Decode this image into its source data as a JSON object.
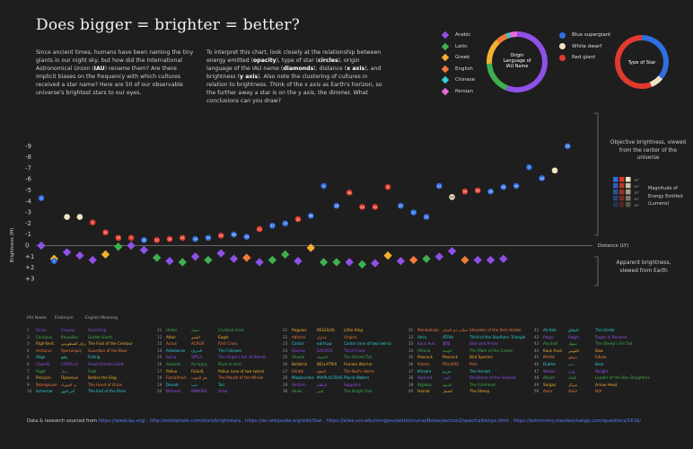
{
  "title": "Does bigger = brighter = better?",
  "intro_left": "Since ancient times, humans have been naming the tiny giants in our night sky, but how did the International Astronomical Union (IAU) rename them? Are there implicit biases on the frequency with which cultures received a star name? Here are 50 of our observable universe's brightest stars to our eyes.",
  "intro_right": "To interpret this chart, look closely at the relationship between energy emitted (opacity), type of star (circles), origin language of the IAU name (diamonds), distance (x axis), and brightness (y axis). Also note the clustering of cultures in relation to brightness. Think of the x axis as Earth's horizon, so the further away a star is on the y axis, the dimmer. What conclusions can you draw?",
  "legend_lang": {
    "items": [
      {
        "label": "Arabic",
        "color": "#8f50e8"
      },
      {
        "label": "Latin",
        "color": "#3fb04f"
      },
      {
        "label": "Greek",
        "color": "#f5b02e"
      },
      {
        "label": "English",
        "color": "#f07a38"
      },
      {
        "label": "Chinese",
        "color": "#2fd0d6"
      },
      {
        "label": "Persian",
        "color": "#e86ad8"
      }
    ],
    "donut_label": "Origin Language of IAU Name"
  },
  "legend_type": {
    "items": [
      {
        "label": "Blue supergiant",
        "color": "#2f6fe0"
      },
      {
        "label": "White dwarf",
        "color": "#efe3c3"
      },
      {
        "label": "Red giant",
        "color": "#e03a2e"
      }
    ],
    "donut_label": "Type of Star"
  },
  "axis": {
    "ylabel": "Brightness (M)",
    "xlabel": "Distance (LY)",
    "yticks": [
      "-9",
      "-8",
      "-7",
      "-6",
      "-5",
      "-4",
      "-3",
      "-2",
      "-1",
      "0",
      "+1",
      "+2",
      "+3"
    ]
  },
  "annotations": {
    "objective": "Objective brightness, viewed from the center of the universe",
    "apparent": "Apparent brightness, viewed from Earth",
    "energy": "Magnitude of Energy Emitted (Lumens)",
    "energy_ticks": [
      "10⁵",
      "10⁴",
      "10³",
      "10²",
      "10¹"
    ]
  },
  "chart_data": {
    "type": "scatter",
    "ylabel": "Brightness (M)",
    "xlabel": "Distance (LY)",
    "ylim": [
      -9,
      3
    ],
    "circles": [
      {
        "x": 1,
        "y": -4.3,
        "c": "#2f6fe0",
        "n": "4"
      },
      {
        "x": 2,
        "y": 1.4,
        "c": "#2f6fe0",
        "n": "1"
      },
      {
        "x": 3,
        "y": -2.6,
        "c": "#efe3c3",
        "n": ""
      },
      {
        "x": 4,
        "y": -2.6,
        "c": "#efe3c3",
        "n": ""
      },
      {
        "x": 5,
        "y": -2.1,
        "c": "#e03a2e",
        "n": "5"
      },
      {
        "x": 6,
        "y": -1.2,
        "c": "#e03a2e",
        "n": "14"
      },
      {
        "x": 7,
        "y": -0.7,
        "c": "#e03a2e",
        "n": "15"
      },
      {
        "x": 8,
        "y": -0.7,
        "c": "#e03a2e",
        "n": "7"
      },
      {
        "x": 9,
        "y": -0.5,
        "c": "#2f6fe0",
        "n": "18"
      },
      {
        "x": 10,
        "y": -0.5,
        "c": "#e03a2e",
        "n": "12"
      },
      {
        "x": 11,
        "y": -0.6,
        "c": "#e03a2e",
        "n": "20"
      },
      {
        "x": 12,
        "y": -0.7,
        "c": "#e03a2e",
        "n": "41"
      },
      {
        "x": 13,
        "y": -0.6,
        "c": "#2f6fe0",
        "n": "34"
      },
      {
        "x": 14,
        "y": -0.7,
        "c": "#2f6fe0",
        "n": "24"
      },
      {
        "x": 15,
        "y": -0.9,
        "c": "#e03a2e",
        "n": "19"
      },
      {
        "x": 16,
        "y": -1.0,
        "c": "#2f6fe0",
        "n": "46"
      },
      {
        "x": 17,
        "y": -0.8,
        "c": "#2f6fe0",
        "n": "29"
      },
      {
        "x": 18,
        "y": -1.5,
        "c": "#e03a2e",
        "n": "11"
      },
      {
        "x": 19,
        "y": -1.8,
        "c": "#2f6fe0",
        "n": "17"
      },
      {
        "x": 20,
        "y": -2.0,
        "c": "#2f6fe0",
        "n": "13"
      },
      {
        "x": 21,
        "y": -2.4,
        "c": "#e03a2e",
        "n": "31"
      },
      {
        "x": 22,
        "y": -2.7,
        "c": "#2f6fe0",
        "n": "36"
      },
      {
        "x": 23,
        "y": -5.4,
        "c": "#2f6fe0",
        "n": "6"
      },
      {
        "x": 24,
        "y": -3.6,
        "c": "#2f6fe0",
        "n": "28"
      },
      {
        "x": 25,
        "y": -4.8,
        "c": "#e03a2e",
        "n": "39"
      },
      {
        "x": 26,
        "y": -3.5,
        "c": "#e03a2e",
        "n": "43"
      },
      {
        "x": 27,
        "y": -3.5,
        "c": "#e03a2e",
        "n": "42"
      },
      {
        "x": 28,
        "y": -5.3,
        "c": "#e03a2e",
        "n": "8"
      },
      {
        "x": 29,
        "y": -3.6,
        "c": "#2f6fe0",
        "n": "37"
      },
      {
        "x": 30,
        "y": -3.0,
        "c": "#2f6fe0",
        "n": "27"
      },
      {
        "x": 31,
        "y": -2.6,
        "c": "#2f6fe0",
        "n": "21"
      },
      {
        "x": 32,
        "y": -5.4,
        "c": "#2f6fe0",
        "n": "31"
      },
      {
        "x": 33,
        "y": -4.4,
        "c": "#efe3c3",
        "n": "48"
      },
      {
        "x": 34,
        "y": -4.9,
        "c": "#e03a2e",
        "n": "50"
      },
      {
        "x": 35,
        "y": -5.0,
        "c": "#e03a2e",
        "n": "49"
      },
      {
        "x": 36,
        "y": -4.9,
        "c": "#2f6fe0",
        "n": "26"
      },
      {
        "x": 37,
        "y": -5.3,
        "c": "#2f6fe0",
        "n": "45"
      },
      {
        "x": 38,
        "y": -5.4,
        "c": "#2f6fe0",
        "n": "50"
      },
      {
        "x": 39,
        "y": -7.1,
        "c": "#2f6fe0",
        "n": "9"
      },
      {
        "x": 40,
        "y": -6.1,
        "c": "#2f6fe0",
        "n": "40"
      },
      {
        "x": 41,
        "y": -6.8,
        "c": "#efe3c3",
        "n": ""
      },
      {
        "x": 42,
        "y": -9.0,
        "c": "#2f6fe0",
        "n": "33"
      }
    ],
    "diamonds": [
      {
        "x": 1,
        "y": 0.0,
        "c": "#8f50e8"
      },
      {
        "x": 2,
        "y": 1.2,
        "c": "#f5b02e"
      },
      {
        "x": 3,
        "y": 0.6,
        "c": "#8f50e8"
      },
      {
        "x": 4,
        "y": 0.9,
        "c": "#8f50e8"
      },
      {
        "x": 5,
        "y": 1.3,
        "c": "#8f50e8"
      },
      {
        "x": 6,
        "y": 0.8,
        "c": "#f5b02e"
      },
      {
        "x": 7,
        "y": 0.1,
        "c": "#3fb04f"
      },
      {
        "x": 8,
        "y": 0.0,
        "c": "#8f50e8"
      },
      {
        "x": 9,
        "y": 0.4,
        "c": "#8f50e8"
      },
      {
        "x": 10,
        "y": 1.1,
        "c": "#3fb04f"
      },
      {
        "x": 11,
        "y": 1.4,
        "c": "#8f50e8"
      },
      {
        "x": 12,
        "y": 1.5,
        "c": "#3fb04f"
      },
      {
        "x": 13,
        "y": 1.0,
        "c": "#8f50e8"
      },
      {
        "x": 14,
        "y": 1.3,
        "c": "#3fb04f"
      },
      {
        "x": 15,
        "y": 0.7,
        "c": "#8f50e8"
      },
      {
        "x": 16,
        "y": 1.2,
        "c": "#8f50e8"
      },
      {
        "x": 17,
        "y": 1.1,
        "c": "#f07a38"
      },
      {
        "x": 18,
        "y": 1.5,
        "c": "#8f50e8"
      },
      {
        "x": 19,
        "y": 1.3,
        "c": "#3fb04f"
      },
      {
        "x": 20,
        "y": 0.8,
        "c": "#3fb04f"
      },
      {
        "x": 21,
        "y": 1.4,
        "c": "#8f50e8"
      },
      {
        "x": 22,
        "y": 0.2,
        "c": "#f5b02e"
      },
      {
        "x": 23,
        "y": 1.5,
        "c": "#3fb04f"
      },
      {
        "x": 24,
        "y": 1.5,
        "c": "#3fb04f"
      },
      {
        "x": 25,
        "y": 1.5,
        "c": "#8f50e8"
      },
      {
        "x": 26,
        "y": 1.7,
        "c": "#3fb04f"
      },
      {
        "x": 27,
        "y": 1.6,
        "c": "#8f50e8"
      },
      {
        "x": 28,
        "y": 0.9,
        "c": "#f5b02e"
      },
      {
        "x": 29,
        "y": 1.4,
        "c": "#8f50e8"
      },
      {
        "x": 30,
        "y": 1.3,
        "c": "#f07a38"
      },
      {
        "x": 31,
        "y": 1.2,
        "c": "#3fb04f"
      },
      {
        "x": 32,
        "y": 1.0,
        "c": "#8f50e8"
      },
      {
        "x": 33,
        "y": 0.5,
        "c": "#8f50e8"
      },
      {
        "x": 34,
        "y": 1.3,
        "c": "#f07a38"
      },
      {
        "x": 35,
        "y": 1.3,
        "c": "#8f50e8"
      },
      {
        "x": 36,
        "y": 1.3,
        "c": "#8f50e8"
      },
      {
        "x": 37,
        "y": 1.2,
        "c": "#8f50e8"
      }
    ]
  },
  "table_header": {
    "iau": "IAU Name",
    "endonym": "Endonym",
    "meaning": "English Meaning"
  },
  "table_cols": [
    [
      [
        "1",
        "Sirius",
        "Σείριος",
        "Scorching"
      ],
      [
        "2",
        "Canopus",
        "Κάνωβος",
        "Golden Earth"
      ],
      [
        "3",
        "Rigil Kent.",
        "رجل القنطورس",
        "The Foot of the Centaur"
      ],
      [
        "4",
        "Arcturus",
        "Ἀρκτοῦρος",
        "Guardian of the Bear"
      ],
      [
        "5",
        "Vega",
        "واقع",
        "Falling"
      ],
      [
        "6",
        "Capella",
        "CAPELLA",
        "Small Female Goat"
      ],
      [
        "7",
        "Rigel",
        "رجل",
        "Foot"
      ],
      [
        "8",
        "Procyon",
        "Προκύων",
        "Before the Dog"
      ],
      [
        "9",
        "Betelgeuse",
        "يد الجوزاء",
        "The Hand of Orion"
      ],
      [
        "10",
        "Achernar",
        "آخر النهر",
        "The End of the River"
      ]
    ],
    [
      [
        "11",
        "Hadar",
        "حضار",
        "Civilized Area"
      ],
      [
        "12",
        "Altair",
        "النسر",
        "Eagle"
      ],
      [
        "13",
        "Acrux",
        "ACRUX",
        "First Cross"
      ],
      [
        "14",
        "Aldebaran",
        "الدبران",
        "The Follower"
      ],
      [
        "15",
        "Spica",
        "SPICA",
        "The Virgin's Ear of Wheat"
      ],
      [
        "16",
        "Antares",
        "Ἀντάρης",
        "Rival to Ares"
      ],
      [
        "17",
        "Pollux",
        "Πολυδ.",
        "Pollux (one of two twins)"
      ],
      [
        "18",
        "Fomalhaut",
        "فم الحوت",
        "The Mouth of the Whale"
      ],
      [
        "19",
        "Deneb",
        "ذنب",
        "Tail"
      ],
      [
        "20",
        "Mimosa",
        "MIMOSA",
        "Actor"
      ]
    ],
    [
      [
        "21",
        "Regulus",
        "REGULUS",
        "Little King"
      ],
      [
        "22",
        "Adhara",
        "عذارى",
        "Virgins"
      ],
      [
        "23",
        "Castor",
        "κάστωρ",
        "Castor (one of two twins)"
      ],
      [
        "24",
        "Gacrux",
        "GACRUX",
        "Third Cross"
      ],
      [
        "25",
        "Shaula",
        "الشولة",
        "The Raised Tail"
      ],
      [
        "26",
        "Bellatrix",
        "BELLATRIX",
        "Female Warrior"
      ],
      [
        "27",
        "Elnath",
        "النطح",
        "The Bull's Horns"
      ],
      [
        "28",
        "Miaplacidus",
        "MIAPLACIDUS",
        "Placid Waters"
      ],
      [
        "29",
        "Alnilam",
        "النظام",
        "Sapphire"
      ],
      [
        "30",
        "Alnair",
        "النير",
        "The Bright One"
      ]
    ],
    [
      [
        "31",
        "Menkalinan",
        "منكب ذي العنان",
        "Shoulder of the Rein Holder"
      ],
      [
        "32",
        "Atria",
        "ATRIA",
        "Third of the Southern Triangle"
      ],
      [
        "33",
        "Kaus Aus.",
        "箕宿",
        "Bow and Arrow"
      ],
      [
        "34",
        "Alhena",
        "الهنعة",
        "The Mark of the Camel"
      ],
      [
        "35",
        "Peacock",
        "Peacock",
        "Bird Species"
      ],
      [
        "36",
        "Polaris",
        "POLARIS",
        "Pole"
      ],
      [
        "37",
        "Mirzam",
        "مرزم",
        "The Herald"
      ],
      [
        "38",
        "Alphard",
        "الفرد",
        "Backbone of the Serpent"
      ],
      [
        "39",
        "Algieba",
        "الجبهة",
        "The Forehead"
      ],
      [
        "40",
        "Hamal",
        "الحمل",
        "The Sheep"
      ]
    ],
    [
      [
        "41",
        "Alnitak",
        "النطاق",
        "The Girdle"
      ],
      [
        "42",
        "Regor",
        "Regor",
        "Roger in Reverse"
      ],
      [
        "43",
        "Alsuhail",
        "سهيل",
        "The Sheep's Fat Tail"
      ],
      [
        "44",
        "Kaus Aust.",
        "القوس",
        "Bow"
      ],
      [
        "45",
        "Mirfak",
        "مرفق",
        "Elbow"
      ],
      [
        "46",
        "Dubhe",
        "دب",
        "Bear"
      ],
      [
        "47",
        "Wezen",
        "وزن",
        "Weight"
      ],
      [
        "48",
        "Alkaid",
        "القائد",
        "Leader of the Bier Daughters"
      ],
      [
        "49",
        "Sargas",
        "سرگز",
        "Arrow Head"
      ],
      [
        "50",
        "Avior",
        "Avior",
        "N/A"
      ]
    ]
  ],
  "footer": {
    "lead": "Data & research sourced from",
    "links": "https://www.iau.org/ ,  http://astropixels.com/stars/brightstars ,  https://en.wikipedia.org/wiki/Star ,  https://sites.uni.edu/morgans/astro/course/Notes/section2/spectraltemps.html ,  https://astronomy.stackexchange.com/questions/1616/"
  }
}
